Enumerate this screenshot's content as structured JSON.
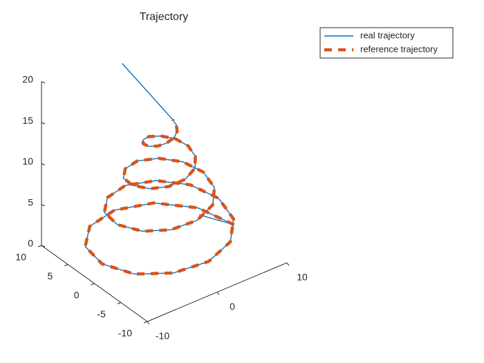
{
  "chart_data": {
    "type": "line3d",
    "title": "Trajectory",
    "xlim": [
      -10,
      10
    ],
    "xticks": [
      -10,
      0,
      10
    ],
    "ylim": [
      -10,
      10
    ],
    "yticks": [
      -10,
      -5,
      0,
      5,
      10
    ],
    "zlim": [
      0,
      20
    ],
    "zticks": [
      0,
      5,
      10,
      15,
      20
    ],
    "legend": "top-right",
    "series": [
      {
        "name": "real trajectory",
        "color": "#0072BD",
        "style": "solid",
        "x": [
          5,
          10,
          8.5,
          4.8,
          0,
          -4.6,
          -7.9,
          -8.9,
          -7.6,
          -4.3,
          0,
          4.1,
          6.9,
          7.8,
          6.6,
          3.7,
          0,
          -3.5,
          -6.0,
          -6.7,
          -5.6,
          -3.2,
          0,
          3.0,
          5.0,
          5.6,
          4.7,
          2.6,
          0,
          -2.4,
          -4.1,
          -4.5,
          -3.7,
          -2.1,
          0,
          1.9,
          3.1,
          3.4,
          2.8,
          1.5,
          0,
          -1.3,
          -2.1,
          -2.3,
          -1.8,
          -1.0,
          0,
          0.8,
          1.2,
          1.2,
          -3
        ],
        "y": [
          0,
          0,
          4.9,
          8.3,
          9.4,
          8.0,
          4.5,
          0,
          -4.4,
          -7.4,
          -8.4,
          -7.1,
          -4.0,
          0,
          3.8,
          6.4,
          7.3,
          6.1,
          3.4,
          0,
          -3.3,
          -5.5,
          -6.2,
          -5.2,
          -2.9,
          0,
          2.7,
          4.5,
          5.1,
          4.2,
          2.3,
          0,
          -2.2,
          -3.6,
          -4.0,
          -3.3,
          -1.8,
          0,
          1.6,
          2.6,
          2.9,
          2.3,
          1.2,
          0,
          -1.1,
          -1.7,
          -1.8,
          -1.4,
          -0.7,
          0,
          4
        ],
        "z": [
          3,
          0,
          0.33,
          0.67,
          1,
          1.33,
          1.67,
          2,
          2.33,
          2.67,
          3,
          3.33,
          3.67,
          4,
          4.33,
          4.67,
          5,
          5.33,
          5.67,
          6,
          6.33,
          6.67,
          7,
          7.33,
          7.67,
          8,
          8.33,
          8.67,
          9,
          9.33,
          9.67,
          10,
          10.33,
          10.67,
          11,
          11.33,
          11.67,
          12,
          12.33,
          12.67,
          13,
          13.33,
          13.67,
          14,
          14.33,
          14.67,
          15,
          15.33,
          15.67,
          16,
          22.5
        ]
      },
      {
        "name": "reference trajectory",
        "color": "#D95319",
        "style": "dashed",
        "x": [
          10,
          8.5,
          4.8,
          0,
          -4.6,
          -7.9,
          -8.9,
          -7.6,
          -4.3,
          0,
          4.1,
          6.9,
          7.8,
          6.6,
          3.7,
          0,
          -3.5,
          -6.0,
          -6.7,
          -5.6,
          -3.2,
          0,
          3.0,
          5.0,
          5.6,
          4.7,
          2.6,
          0,
          -2.4,
          -4.1,
          -4.5,
          -3.7,
          -2.1,
          0,
          1.9,
          3.1,
          3.4,
          2.8,
          1.5,
          0,
          -1.3,
          -2.1,
          -2.3,
          -1.8,
          -1.0,
          0,
          0.8,
          1.2,
          1.2
        ],
        "y": [
          0,
          4.9,
          8.3,
          9.4,
          8.0,
          4.5,
          0,
          -4.4,
          -7.4,
          -8.4,
          -7.1,
          -4.0,
          0,
          3.8,
          6.4,
          7.3,
          6.1,
          3.4,
          0,
          -3.3,
          -5.5,
          -6.2,
          -5.2,
          -2.9,
          0,
          2.7,
          4.5,
          5.1,
          4.2,
          2.3,
          0,
          -2.2,
          -3.6,
          -4.0,
          -3.3,
          -1.8,
          0,
          1.6,
          2.6,
          2.9,
          2.3,
          1.2,
          0,
          -1.1,
          -1.7,
          -1.8,
          -1.4,
          -0.7,
          0
        ],
        "z": [
          0,
          0.33,
          0.67,
          1,
          1.33,
          1.67,
          2,
          2.33,
          2.67,
          3,
          3.33,
          3.67,
          4,
          4.33,
          4.67,
          5,
          5.33,
          5.67,
          6,
          6.33,
          6.67,
          7,
          7.33,
          7.67,
          8,
          8.33,
          8.67,
          9,
          9.33,
          9.67,
          10,
          10.33,
          10.67,
          11,
          11.33,
          11.67,
          12,
          12.33,
          12.67,
          13,
          13.33,
          13.67,
          14,
          14.33,
          14.67,
          15,
          15.33,
          15.67,
          16
        ]
      }
    ]
  }
}
